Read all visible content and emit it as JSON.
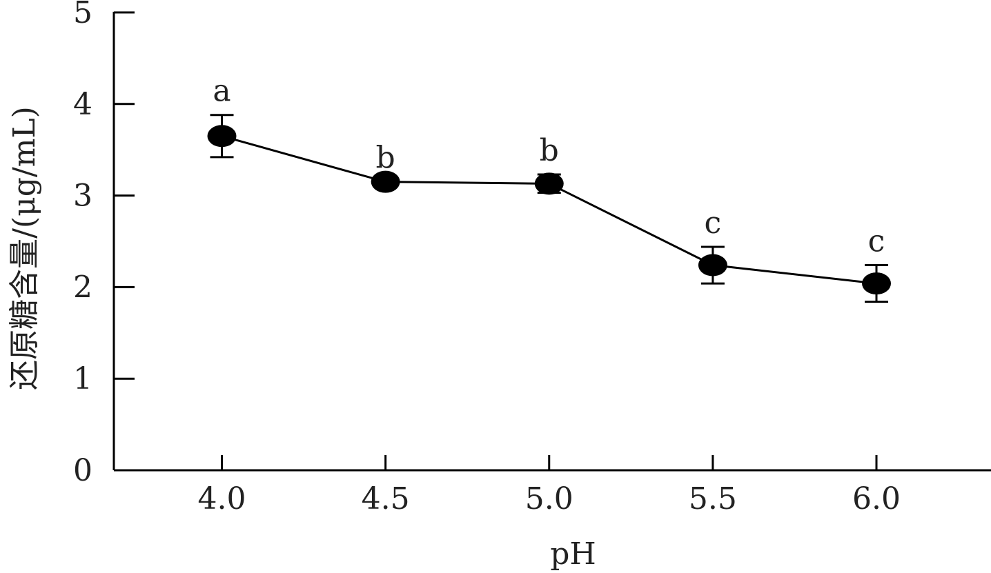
{
  "chart_data": {
    "type": "line",
    "xlabel": "pH",
    "ylabel": "还原糖含量/(μg/mL)",
    "x": [
      4.0,
      4.5,
      5.0,
      5.5,
      6.0
    ],
    "x_tick_labels": [
      "4.0",
      "4.5",
      "5.0",
      "5.5",
      "6.0"
    ],
    "xlim": [
      3.67,
      6.35
    ],
    "ylim": [
      0,
      5
    ],
    "y_ticks": [
      0,
      1,
      2,
      3,
      4,
      5
    ],
    "y_tick_labels": [
      "0",
      "1",
      "2",
      "3",
      "4",
      "5"
    ],
    "grid": false,
    "series": [
      {
        "values": [
          3.65,
          3.15,
          3.13,
          2.24,
          2.04
        ],
        "error": [
          0.23,
          0.0,
          0.1,
          0.2,
          0.2
        ],
        "significance": [
          "a",
          "b",
          "b",
          "c",
          "c"
        ],
        "marker": "filled-circle",
        "color": "#000000"
      }
    ]
  }
}
